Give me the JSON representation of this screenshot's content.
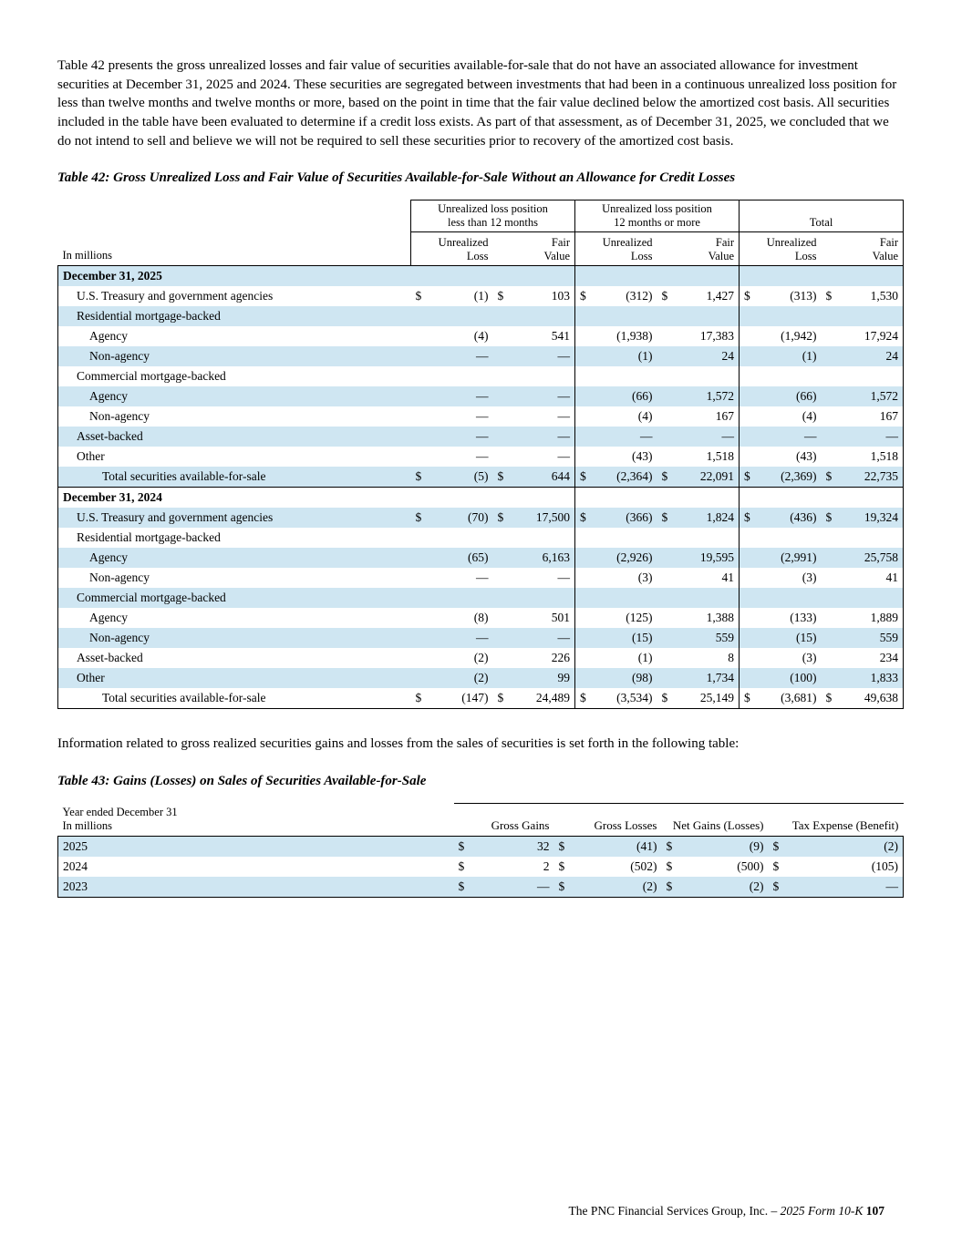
{
  "colors": {
    "row_highlight": "#cfe6f2"
  },
  "intro": "Table 42 presents the gross unrealized losses and fair value of securities available-for-sale that do not have an associated allowance for investment securities at December 31, 2025 and 2024. These securities are segregated between investments that had been in a continuous unrealized loss position for less than twelve months and twelve months or more, based on the point in time that the fair value declined below the amortized cost basis. All securities included in the table have been evaluated to determine if a credit loss exists. As part of that assessment, as of December 31, 2025, we concluded that we do not intend to sell and believe we will not be required to sell these securities prior to recovery of the amortized cost basis.",
  "table42": {
    "title": "Table 42: Gross Unrealized Loss and Fair Value of Securities Available-for-Sale Without an Allowance for Credit Losses",
    "in_millions": "In millions",
    "groups": [
      "Unrealized loss position\nless than 12 months",
      "Unrealized loss position\n12 months or more",
      "Total"
    ],
    "columns": [
      "Unrealized\nLoss",
      "Fair\nValue",
      "Unrealized\nLoss",
      "Fair\nValue",
      "Unrealized\nLoss",
      "Fair\nValue"
    ],
    "rows": [
      {
        "label": "December 31, 2025",
        "section": true
      },
      {
        "label": "U.S. Treasury and government agencies",
        "indent": 1,
        "dollar": true,
        "values": [
          "(1)",
          "103",
          "(312)",
          "1,427",
          "(313)",
          "1,530"
        ]
      },
      {
        "label": "Residential mortgage-backed",
        "indent": 1,
        "values": null
      },
      {
        "label": "Agency",
        "indent": 2,
        "values": [
          "(4)",
          "541",
          "(1,938)",
          "17,383",
          "(1,942)",
          "17,924"
        ]
      },
      {
        "label": "Non-agency",
        "indent": 2,
        "values": [
          "—",
          "—",
          "(1)",
          "24",
          "(1)",
          "24"
        ]
      },
      {
        "label": "Commercial mortgage-backed",
        "indent": 1,
        "values": null
      },
      {
        "label": "Agency",
        "indent": 2,
        "values": [
          "—",
          "—",
          "(66)",
          "1,572",
          "(66)",
          "1,572"
        ]
      },
      {
        "label": "Non-agency",
        "indent": 2,
        "values": [
          "—",
          "—",
          "(4)",
          "167",
          "(4)",
          "167"
        ]
      },
      {
        "label": "Asset-backed",
        "indent": 1,
        "values": [
          "—",
          "—",
          "—",
          "—",
          "—",
          "—"
        ]
      },
      {
        "label": "Other",
        "indent": 1,
        "values": [
          "—",
          "—",
          "(43)",
          "1,518",
          "(43)",
          "1,518"
        ]
      },
      {
        "label": "Total securities available-for-sale",
        "indent": 3,
        "dollar": true,
        "values": [
          "(5)",
          "644",
          "(2,364)",
          "22,091",
          "(2,369)",
          "22,735"
        ]
      },
      {
        "label": "December 31, 2024",
        "section": true
      },
      {
        "label": "U.S. Treasury and government agencies",
        "indent": 1,
        "dollar": true,
        "values": [
          "(70)",
          "17,500",
          "(366)",
          "1,824",
          "(436)",
          "19,324"
        ]
      },
      {
        "label": "Residential mortgage-backed",
        "indent": 1,
        "values": null
      },
      {
        "label": "Agency",
        "indent": 2,
        "values": [
          "(65)",
          "6,163",
          "(2,926)",
          "19,595",
          "(2,991)",
          "25,758"
        ]
      },
      {
        "label": "Non-agency",
        "indent": 2,
        "values": [
          "—",
          "—",
          "(3)",
          "41",
          "(3)",
          "41"
        ]
      },
      {
        "label": "Commercial mortgage-backed",
        "indent": 1,
        "values": null
      },
      {
        "label": "Agency",
        "indent": 2,
        "values": [
          "(8)",
          "501",
          "(125)",
          "1,388",
          "(133)",
          "1,889"
        ]
      },
      {
        "label": "Non-agency",
        "indent": 2,
        "values": [
          "—",
          "—",
          "(15)",
          "559",
          "(15)",
          "559"
        ]
      },
      {
        "label": "Asset-backed",
        "indent": 1,
        "values": [
          "(2)",
          "226",
          "(1)",
          "8",
          "(3)",
          "234"
        ]
      },
      {
        "label": "Other",
        "indent": 1,
        "values": [
          "(2)",
          "99",
          "(98)",
          "1,734",
          "(100)",
          "1,833"
        ]
      },
      {
        "label": "Total securities available-for-sale",
        "indent": 3,
        "dollar": true,
        "values": [
          "(147)",
          "24,489",
          "(3,534)",
          "25,149",
          "(3,681)",
          "49,638"
        ]
      }
    ]
  },
  "para2": "Information related to gross realized securities gains and losses from the sales of securities is set forth in the following table:",
  "table43": {
    "title": "Table 43: Gains (Losses) on Sales of Securities Available-for-Sale",
    "header_left": "Year ended December 31\nIn millions",
    "columns": [
      "Gross Gains",
      "Gross Losses",
      "Net Gains (Losses)",
      "Tax Expense (Benefit)"
    ],
    "rows": [
      {
        "label": "2025",
        "values": [
          "32",
          "(41)",
          "(9)",
          "(2)"
        ]
      },
      {
        "label": "2024",
        "values": [
          "2",
          "(502)",
          "(500)",
          "(105)"
        ]
      },
      {
        "label": "2023",
        "values": [
          "—",
          "(2)",
          "(2)",
          "—"
        ]
      }
    ]
  },
  "footer": {
    "company": "The PNC Financial Services Group, Inc. –",
    "form": "2025 Form 10-K",
    "page_number": "107"
  }
}
